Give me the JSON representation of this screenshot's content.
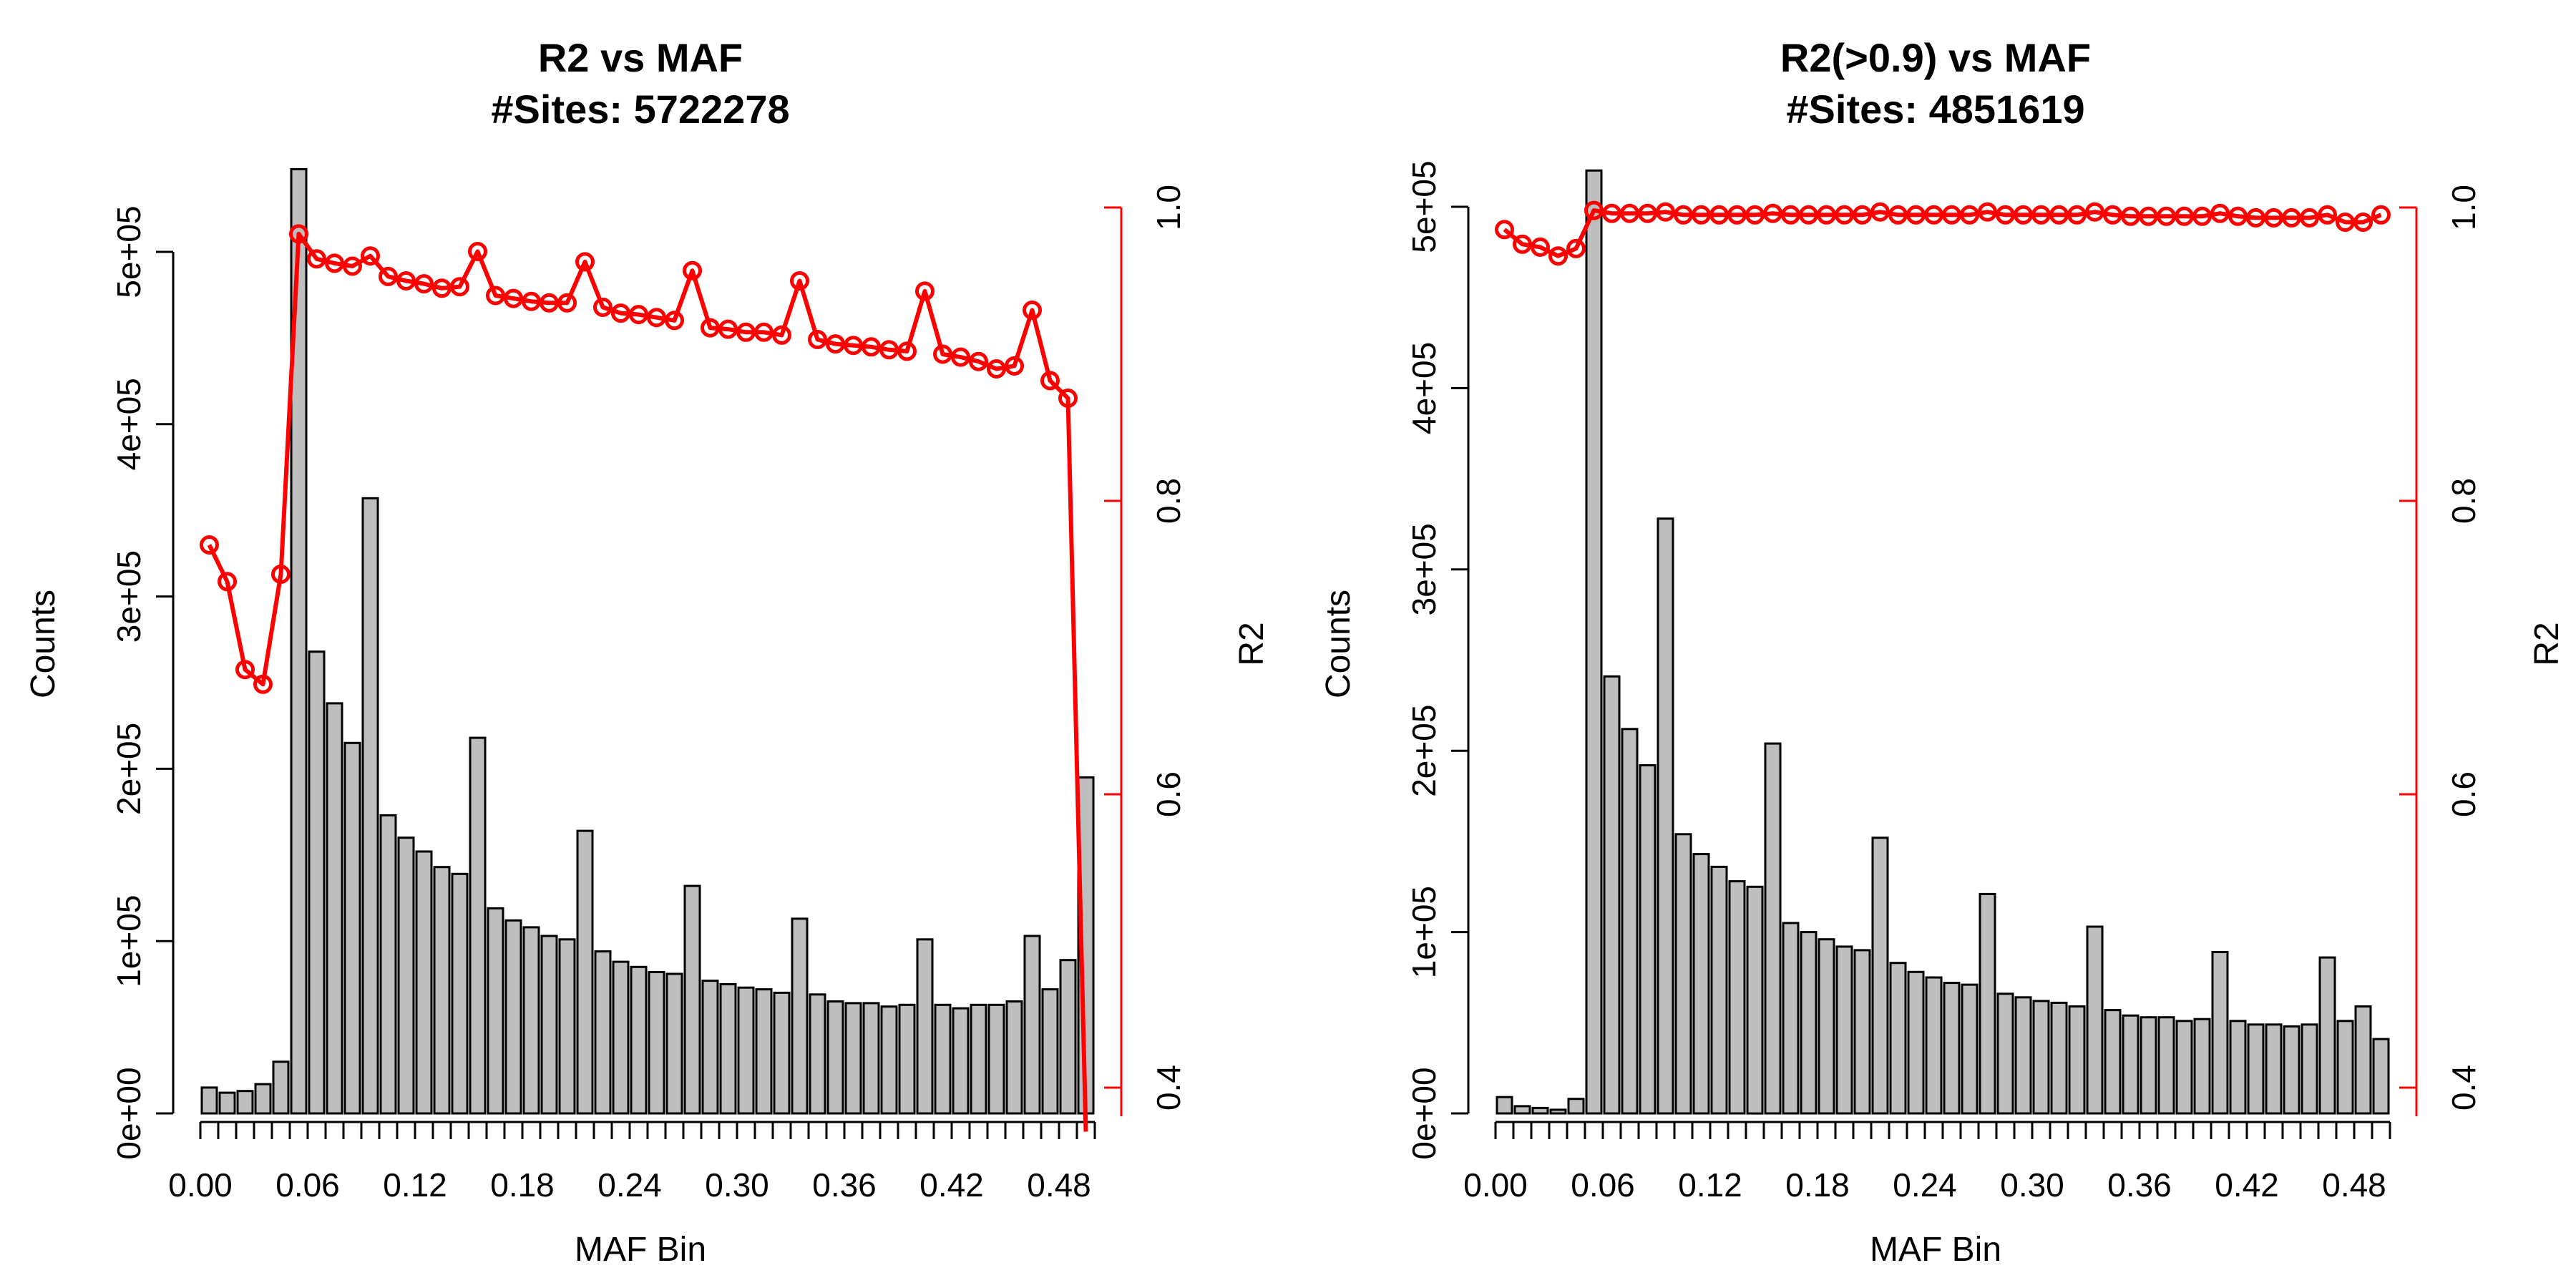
{
  "chart_data": [
    {
      "type": "bar",
      "title_line1": "R2 vs MAF",
      "title_line2": "#Sites:  5722278",
      "xlabel": "MAF Bin",
      "ylabel": "Counts",
      "ylabel_right": "R2",
      "bin_width": 0.01,
      "xlim": [
        0.0,
        0.5
      ],
      "x_ticks": [
        "0.00",
        "0.06",
        "0.12",
        "0.18",
        "0.24",
        "0.30",
        "0.36",
        "0.42",
        "0.48"
      ],
      "ylim": [
        0,
        500000
      ],
      "y_ticks": [
        "0e+00",
        "1e+05",
        "2e+05",
        "3e+05",
        "4e+05",
        "5e+05"
      ],
      "y2lim": [
        0.4,
        1.0
      ],
      "y2_ticks": [
        "0.4",
        "0.6",
        "0.8",
        "1.0"
      ],
      "bar_fill": "#bebebe",
      "line_color": "#ff0000",
      "counts": [
        15000,
        12000,
        13000,
        17000,
        30000,
        548000,
        268000,
        238000,
        215000,
        357000,
        173000,
        160000,
        152000,
        143000,
        139000,
        218000,
        119000,
        112000,
        108000,
        103000,
        101000,
        164000,
        94000,
        88000,
        85000,
        82000,
        81000,
        132000,
        77000,
        75000,
        73000,
        72000,
        70000,
        113000,
        69000,
        65000,
        64000,
        64000,
        62000,
        63000,
        101000,
        63000,
        61000,
        63000,
        63000,
        65000,
        103000,
        72000,
        89000,
        195000
      ],
      "r2": [
        0.77,
        0.745,
        0.685,
        0.675,
        0.75,
        0.982,
        0.965,
        0.962,
        0.96,
        0.967,
        0.953,
        0.95,
        0.948,
        0.945,
        0.946,
        0.97,
        0.94,
        0.938,
        0.936,
        0.935,
        0.935,
        0.963,
        0.932,
        0.928,
        0.927,
        0.925,
        0.923,
        0.957,
        0.918,
        0.917,
        0.915,
        0.915,
        0.913,
        0.95,
        0.91,
        0.907,
        0.906,
        0.905,
        0.903,
        0.902,
        0.943,
        0.9,
        0.898,
        0.895,
        0.89,
        0.892,
        0.93,
        0.882,
        0.87,
        0.37
      ]
    },
    {
      "type": "bar",
      "title_line1": "R2(>0.9) vs MAF",
      "title_line2": "#Sites:  4851619",
      "xlabel": "MAF Bin",
      "ylabel": "Counts",
      "ylabel_right": "R2",
      "bin_width": 0.01,
      "xlim": [
        0.0,
        0.5
      ],
      "x_ticks": [
        "0.00",
        "0.06",
        "0.12",
        "0.18",
        "0.24",
        "0.30",
        "0.36",
        "0.42",
        "0.48"
      ],
      "ylim": [
        0,
        500000
      ],
      "y_ticks": [
        "0e+00",
        "1e+05",
        "2e+05",
        "3e+05",
        "4e+05",
        "5e+05"
      ],
      "y2lim": [
        0.4,
        1.0
      ],
      "y2_ticks": [
        "0.4",
        "0.6",
        "0.8",
        "1.0"
      ],
      "bar_fill": "#bebebe",
      "line_color": "#ff0000",
      "counts": [
        9000,
        4000,
        3000,
        2000,
        8000,
        520000,
        241000,
        212000,
        192000,
        328000,
        154000,
        143000,
        136000,
        128000,
        125000,
        204000,
        105000,
        100000,
        96000,
        92000,
        90000,
        152000,
        83000,
        78000,
        75000,
        72000,
        71000,
        121000,
        66000,
        64000,
        62000,
        61000,
        59000,
        103000,
        57000,
        54000,
        53000,
        53000,
        51000,
        52000,
        89000,
        51000,
        49000,
        49000,
        48000,
        49000,
        86000,
        51000,
        59000,
        41000
      ],
      "r2": [
        0.985,
        0.975,
        0.973,
        0.967,
        0.972,
        0.998,
        0.996,
        0.996,
        0.996,
        0.997,
        0.995,
        0.995,
        0.995,
        0.995,
        0.995,
        0.996,
        0.995,
        0.995,
        0.995,
        0.995,
        0.995,
        0.997,
        0.995,
        0.995,
        0.995,
        0.995,
        0.995,
        0.997,
        0.995,
        0.995,
        0.995,
        0.995,
        0.995,
        0.997,
        0.995,
        0.994,
        0.994,
        0.994,
        0.994,
        0.994,
        0.996,
        0.994,
        0.993,
        0.993,
        0.993,
        0.993,
        0.995,
        0.99,
        0.99,
        0.995
      ]
    }
  ]
}
